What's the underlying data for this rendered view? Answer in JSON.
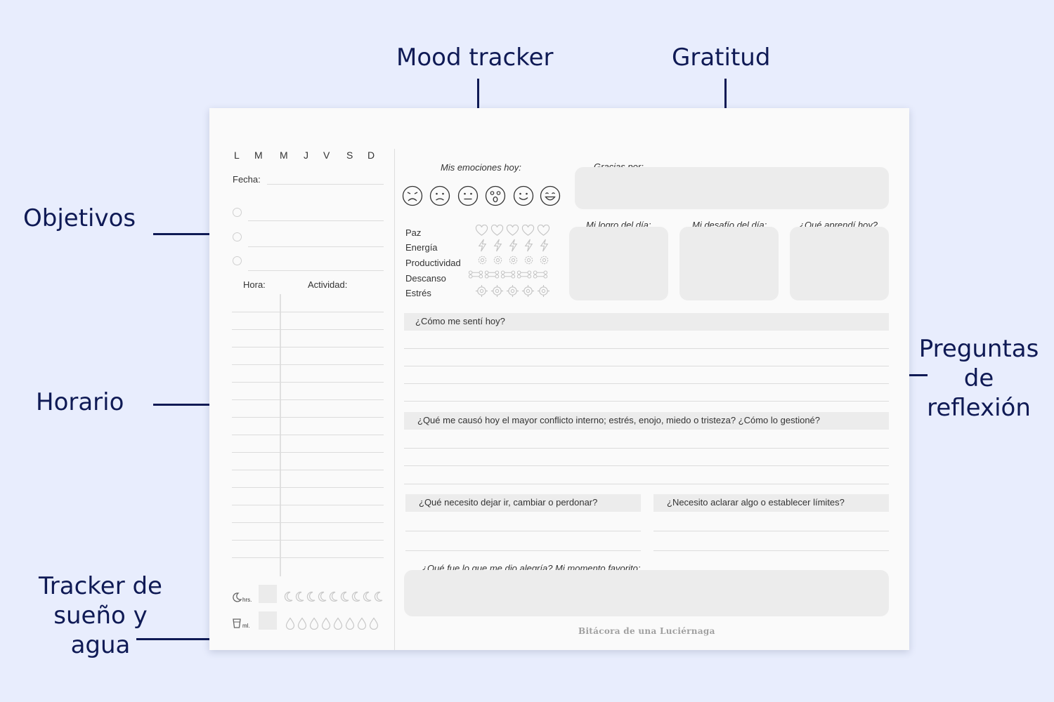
{
  "callouts": {
    "mood": "Mood tracker",
    "gratitude": "Gratitud",
    "goals": "Objetivos",
    "schedule": "Horario",
    "sleep_water_line1": "Tracker de",
    "sleep_water_line2": "sueño y agua",
    "reflection_line1": "Preguntas",
    "reflection_line2": "de",
    "reflection_line3": "reflexión"
  },
  "planner": {
    "weekdays": [
      "L",
      "M",
      "M",
      "J",
      "V",
      "S",
      "D"
    ],
    "date_label": "Fecha:",
    "hour_label": "Hora:",
    "activity_label": "Actividad:",
    "sleep_unit": "hrs.",
    "water_unit": "ml.",
    "emotions_label": "Mis emociones hoy:",
    "faces": [
      "sad-face-icon",
      "frown-face-icon",
      "neutral-face-icon",
      "surprised-face-icon",
      "smile-face-icon",
      "happy-face-icon"
    ],
    "trackers": [
      {
        "label": "Paz",
        "icon": "heart-icon"
      },
      {
        "label": "Energía",
        "icon": "lightning-icon"
      },
      {
        "label": "Productividad",
        "icon": "gear-icon"
      },
      {
        "label": "Descanso",
        "icon": "bone-icon"
      },
      {
        "label": "Estrés",
        "icon": "target-icon"
      }
    ],
    "gratitude_label": "Gracias por:",
    "achievement_label": "Mi logro del día:",
    "challenge_label": "Mi desafío del día:",
    "learned_label": "¿Qué aprendí hoy?",
    "q_felt": "¿Cómo me sentí hoy?",
    "q_conflict": "¿Qué me causó hoy el mayor conflicto interno; estrés, enojo, miedo o tristeza? ¿Cómo lo gestioné?",
    "q_let_go": "¿Qué necesito dejar ir, cambiar o perdonar?",
    "q_limits": "¿Necesito aclarar algo o establecer límites?",
    "q_joy": "¿Qué fue lo que me dio alegría? Mi momento favorito:",
    "brand": "Bitácora de una Luciérnaga"
  }
}
